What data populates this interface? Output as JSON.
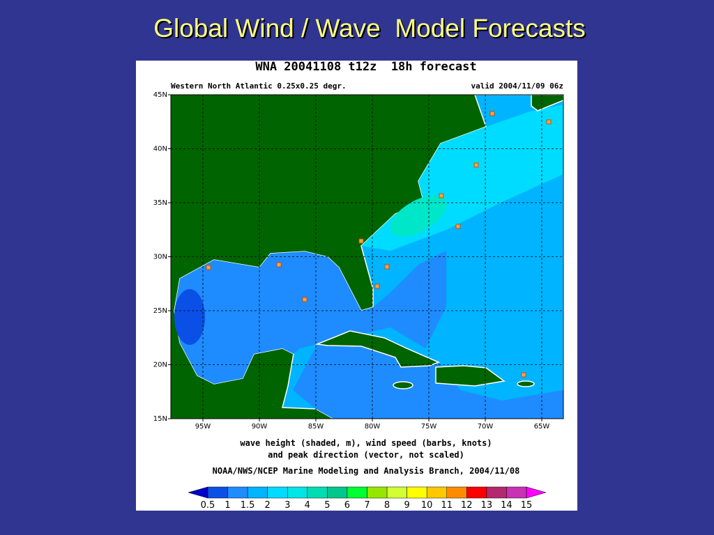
{
  "title": "Global Wind / Wave  Model Forecasts",
  "figure": {
    "header": "WNA 20041108 t12z  18h forecast",
    "region": "Western North Atlantic 0.25x0.25 degr.",
    "valid": "valid 2004/11/09 06z",
    "lat_labels": [
      "45N",
      "40N",
      "35N",
      "30N",
      "25N",
      "20N",
      "15N"
    ],
    "lon_labels": [
      "95W",
      "90W",
      "85W",
      "80W",
      "75W",
      "70W",
      "65W"
    ],
    "caption": [
      "wave height (shaded, m), wind speed (barbs, knots)",
      "and peak direction (vector, not scaled)"
    ],
    "credit": "NOAA/NWS/NCEP Marine Modeling and Analysis Branch, 2004/11/08",
    "colorbar": {
      "labels": [
        0.5,
        1,
        1.5,
        2,
        3,
        4,
        5,
        6,
        7,
        8,
        9,
        10,
        11,
        12,
        13,
        14,
        15
      ],
      "colors": [
        "#0000c8",
        "#0a50e6",
        "#1e8cff",
        "#00b4ff",
        "#00dcff",
        "#00e6e6",
        "#00dcb4",
        "#00c88c",
        "#00ff32",
        "#96e600",
        "#d2ff32",
        "#ffff00",
        "#ffc800",
        "#ff8c00",
        "#ff0000",
        "#b4286e",
        "#c832b4",
        "#ff00ff"
      ]
    }
  }
}
